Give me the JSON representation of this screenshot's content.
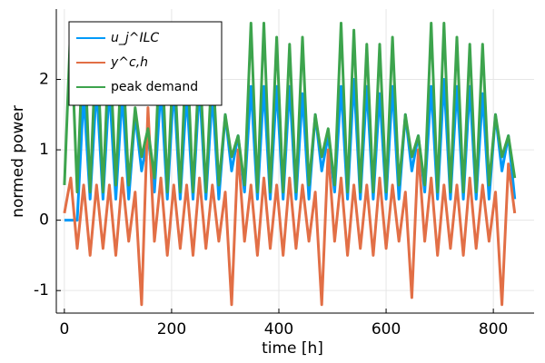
{
  "chart_data": {
    "type": "line",
    "xlabel": "time [h]",
    "ylabel": "normed power",
    "x": [
      0,
      12,
      24,
      36,
      48,
      60,
      72,
      84,
      96,
      108,
      120,
      132,
      144,
      156,
      168,
      180,
      192,
      204,
      216,
      228,
      240,
      252,
      264,
      276,
      288,
      300,
      312,
      324,
      336,
      348,
      360,
      372,
      384,
      396,
      408,
      420,
      432,
      444,
      456,
      468,
      480,
      492,
      504,
      516,
      528,
      540,
      552,
      564,
      576,
      588,
      600,
      612,
      624,
      636,
      648,
      660,
      672,
      684,
      696,
      708,
      720,
      732,
      744,
      756,
      768,
      780,
      792,
      804,
      816,
      828,
      840
    ],
    "series": [
      {
        "name": "u_j^ILC",
        "color": "#009af9",
        "values": [
          0,
          0,
          0,
          1.8,
          0.3,
          1.9,
          0.3,
          1.9,
          0.3,
          1.8,
          0.3,
          1.5,
          0.7,
          1.2,
          0.4,
          1.9,
          0.3,
          1.9,
          0.3,
          1.8,
          0.3,
          1.9,
          0.3,
          1.8,
          0.3,
          1.5,
          0.7,
          1.2,
          0.4,
          1.9,
          0.3,
          1.9,
          0.3,
          1.9,
          0.3,
          1.9,
          0.3,
          1.8,
          0.3,
          1.5,
          0.7,
          1.2,
          0.4,
          1.9,
          0.3,
          2.0,
          0.3,
          1.9,
          0.3,
          1.8,
          0.3,
          1.9,
          0.3,
          1.5,
          0.7,
          1.2,
          0.4,
          1.9,
          0.3,
          2.0,
          0.3,
          1.9,
          0.3,
          1.9,
          0.3,
          1.8,
          0.3,
          1.5,
          0.7,
          1.2,
          0.3
        ]
      },
      {
        "name": "y^c,h",
        "color": "#e26f46",
        "values": [
          0.1,
          0.6,
          -0.4,
          0.5,
          -0.5,
          0.5,
          -0.4,
          0.5,
          -0.5,
          0.6,
          -0.3,
          0.4,
          -1.2,
          1.6,
          -0.3,
          0.6,
          -0.5,
          0.5,
          -0.4,
          0.5,
          -0.5,
          0.6,
          -0.4,
          0.5,
          -0.3,
          0.4,
          -1.2,
          1.0,
          -0.3,
          0.5,
          -0.5,
          0.6,
          -0.4,
          0.5,
          -0.5,
          0.6,
          -0.4,
          0.5,
          -0.3,
          0.4,
          -1.2,
          1.0,
          -0.3,
          0.6,
          -0.5,
          0.5,
          -0.4,
          0.5,
          -0.5,
          0.6,
          -0.4,
          0.5,
          -0.3,
          0.4,
          -1.1,
          1.0,
          -0.3,
          0.6,
          -0.5,
          0.5,
          -0.4,
          0.5,
          -0.5,
          0.6,
          -0.4,
          0.5,
          -0.3,
          0.4,
          -1.2,
          0.8,
          0.1
        ]
      },
      {
        "name": "peak demand",
        "color": "#3da44d",
        "values": [
          0.5,
          2.8,
          0.4,
          2.8,
          0.4,
          2.7,
          0.4,
          2.6,
          0.5,
          2.5,
          0.5,
          1.6,
          0.9,
          1.3,
          0.6,
          2.8,
          0.4,
          2.4,
          0.4,
          2.5,
          0.4,
          2.3,
          0.4,
          2.3,
          0.5,
          1.5,
          0.9,
          1.2,
          0.5,
          2.8,
          0.4,
          2.8,
          0.4,
          2.6,
          0.4,
          2.5,
          0.4,
          2.6,
          0.5,
          1.5,
          0.9,
          1.3,
          0.5,
          2.8,
          0.4,
          2.7,
          0.4,
          2.5,
          0.4,
          2.5,
          0.4,
          2.6,
          0.5,
          1.5,
          0.9,
          1.2,
          0.5,
          2.8,
          0.4,
          2.8,
          0.4,
          2.6,
          0.4,
          2.5,
          0.4,
          2.5,
          0.5,
          1.5,
          0.9,
          1.2,
          0.6
        ]
      }
    ],
    "xlim": [
      -15,
      876
    ],
    "xticks": [
      0,
      200,
      400,
      600,
      800
    ],
    "ylim": [
      -1.32,
      3.0
    ],
    "yticks": [
      -1,
      0,
      1,
      2
    ],
    "grid": true,
    "legend": "top-left"
  }
}
